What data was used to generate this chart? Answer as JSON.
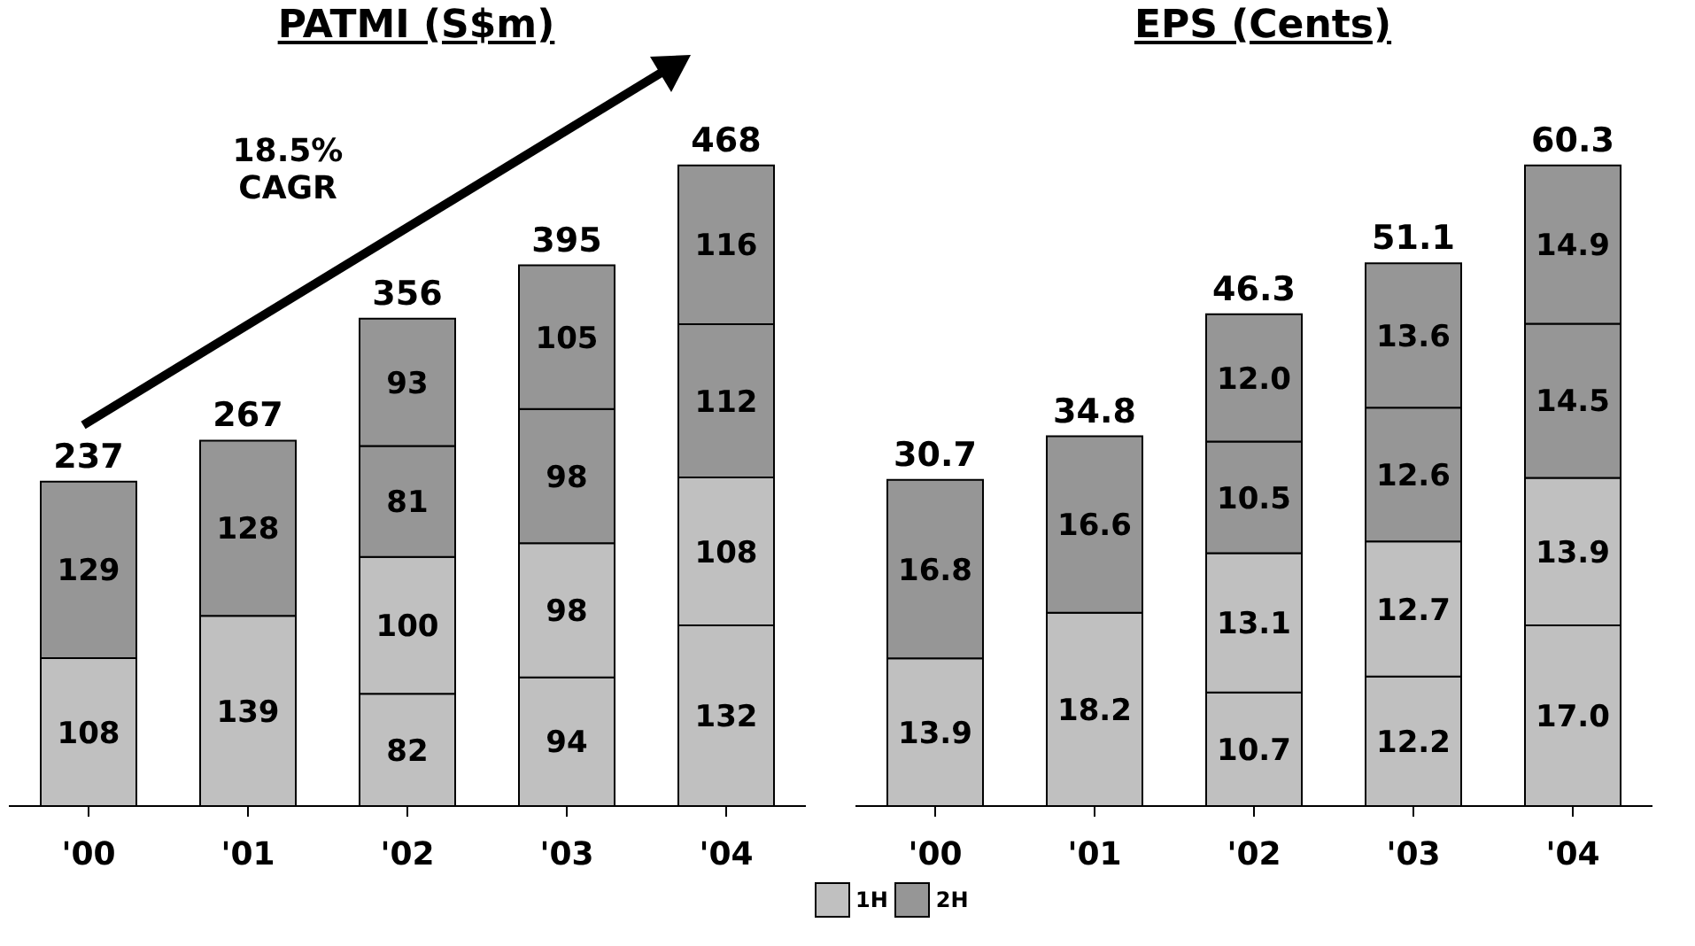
{
  "chart_data": [
    {
      "type": "bar",
      "title": "PATMI (S$m)",
      "categories": [
        "'00",
        "'01",
        "'02",
        "'03",
        "'04"
      ],
      "stacked": true,
      "data_labels": true,
      "legend": "bottom right",
      "series": [
        {
          "name": "1H",
          "color": "#c0c0c0",
          "values": [
            108,
            139,
            82,
            94,
            132
          ]
        },
        {
          "color": "#c0c0c0",
          "values": [
            null,
            null,
            100,
            98,
            108
          ]
        },
        {
          "name": "2H",
          "color": "#969696",
          "values": [
            129,
            128,
            81,
            98,
            112
          ]
        },
        {
          "color": "#969696",
          "values": [
            null,
            null,
            93,
            105,
            116
          ]
        }
      ],
      "totals": [
        "237",
        "267",
        "356",
        "395",
        "468"
      ],
      "annotations": [
        "18.5% CAGR"
      ]
    },
    {
      "type": "bar",
      "title": "EPS (Cents)",
      "categories": [
        "'00",
        "'01",
        "'02",
        "'03",
        "'04"
      ],
      "stacked": true,
      "data_labels": true,
      "series": [
        {
          "color": "#c0c0c0",
          "values": [
            13.9,
            18.2,
            10.7,
            12.2,
            17.0
          ],
          "value_labels": [
            "13.9",
            "18.2",
            "10.7",
            "12.2",
            "17.0"
          ]
        },
        {
          "color": "#c0c0c0",
          "values": [
            null,
            null,
            13.1,
            12.7,
            13.9
          ]
        },
        {
          "color": "#969696",
          "values": [
            16.8,
            16.6,
            10.5,
            12.6,
            14.5
          ]
        },
        {
          "color": "#969696",
          "values": [
            null,
            null,
            12.0,
            13.6,
            14.9
          ],
          "value_labels": [
            null,
            null,
            "12.0",
            "13.6",
            "14.9"
          ]
        }
      ],
      "totals": [
        "30.7",
        "34.8",
        "46.3",
        "51.1",
        "60.3"
      ]
    }
  ]
}
